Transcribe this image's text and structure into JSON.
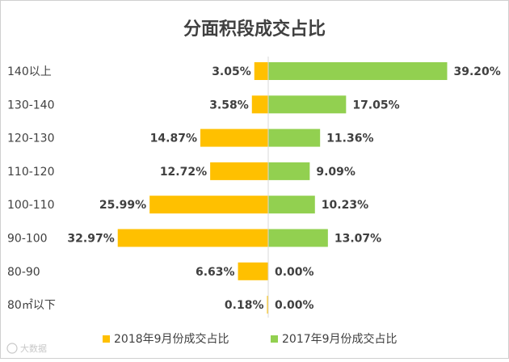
{
  "chart_data": {
    "type": "bar",
    "title": "分面积段成交占比",
    "categories": [
      "140以上",
      "130-140",
      "120-130",
      "110-120",
      "100-110",
      "90-100",
      "80-90",
      "80㎡以下"
    ],
    "series": [
      {
        "name": "2018年9月份成交占比",
        "values": [
          3.05,
          3.58,
          14.87,
          12.72,
          25.99,
          32.97,
          6.63,
          0.18
        ],
        "labels": [
          "3.05%",
          "3.58%",
          "14.87%",
          "12.72%",
          "25.99%",
          "32.97%",
          "6.63%",
          "0.18%"
        ],
        "color": "#FFC000",
        "direction": "left"
      },
      {
        "name": "2017年9月份成交占比",
        "values": [
          39.2,
          17.05,
          11.36,
          9.09,
          10.23,
          13.07,
          0.0,
          0.0
        ],
        "labels": [
          "39.20%",
          "17.05%",
          "11.36%",
          "9.09%",
          "10.23%",
          "13.07%",
          "0.00%",
          "0.00%"
        ],
        "color": "#92D050",
        "direction": "right"
      }
    ],
    "legend_position": "bottom",
    "grid": false,
    "axis_color": "#d9d9d9"
  },
  "watermark": "大数据"
}
